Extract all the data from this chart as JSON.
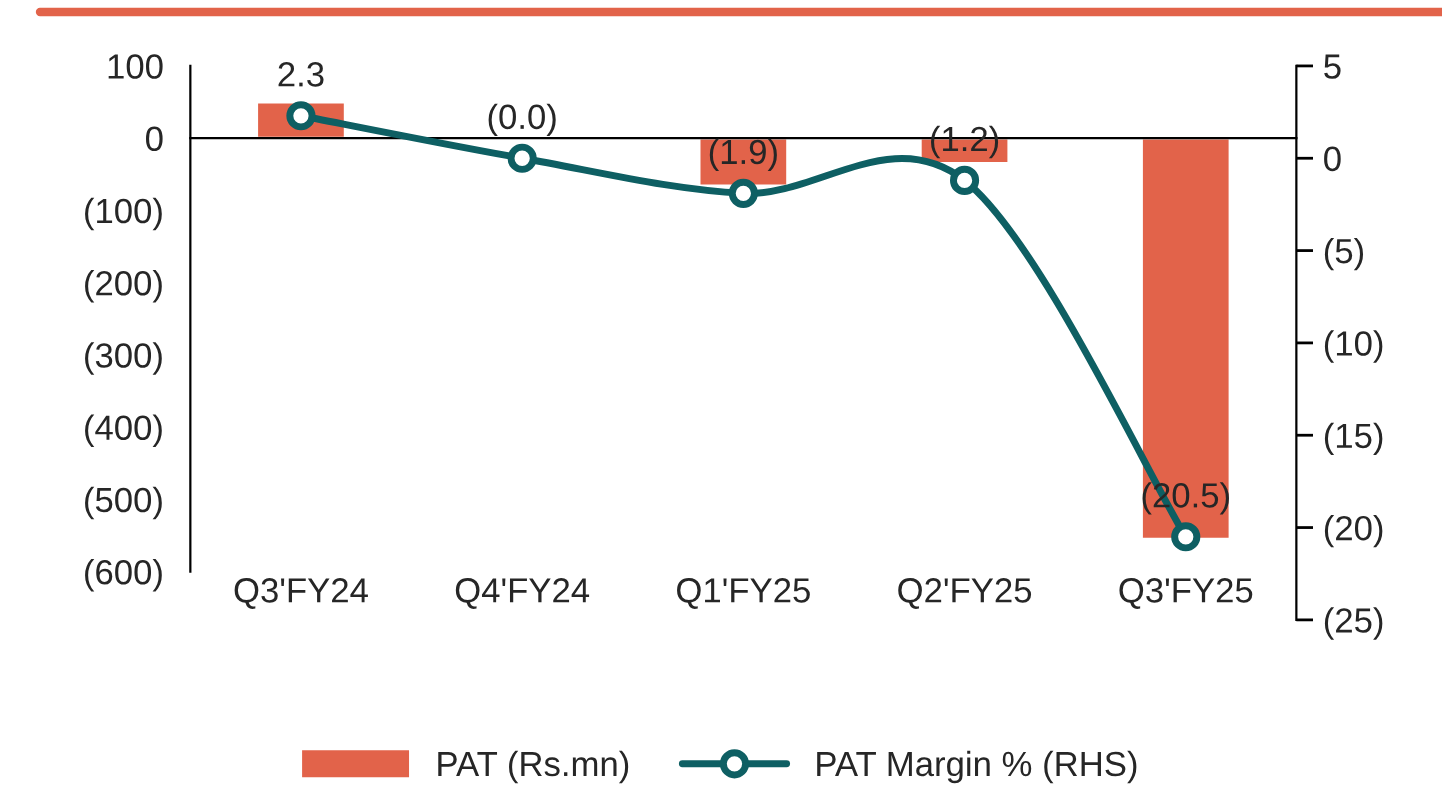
{
  "chart_data": {
    "type": "bar",
    "categories": [
      "Q3'FY24",
      "Q4'FY24",
      "Q1'FY25",
      "Q2'FY25",
      "Q3'FY25"
    ],
    "series": [
      {
        "name": "PAT (Rs.mn)",
        "color": "#e2634a",
        "values": [
          50,
          null,
          -66,
          -35,
          -555
        ]
      },
      {
        "name": "PAT Margin % (RHS)",
        "type": "line",
        "axis": "y2",
        "color": "#0e5f63",
        "values": [
          2.3,
          0.0,
          -1.9,
          -1.2,
          -20.5
        ],
        "value_labels": [
          "2.3",
          "(0.0)",
          "(1.9)",
          "(1.2)",
          "(20.5)"
        ]
      }
    ],
    "ylim": [
      -600,
      100
    ],
    "yticks": [
      {
        "value": 100,
        "label": "100"
      },
      {
        "value": 0,
        "label": "0"
      },
      {
        "value": -100,
        "label": "(100)"
      },
      {
        "value": -200,
        "label": "(200)"
      },
      {
        "value": -300,
        "label": "(300)"
      },
      {
        "value": -400,
        "label": "(400)"
      },
      {
        "value": -500,
        "label": "(500)"
      },
      {
        "value": -600,
        "label": "(600)"
      }
    ],
    "y2lim": [
      -25,
      5
    ],
    "y2ticks": [
      {
        "value": 5,
        "label": "5"
      },
      {
        "value": 0,
        "label": "0"
      },
      {
        "value": -5,
        "label": "(5)"
      },
      {
        "value": -10,
        "label": "(10)"
      },
      {
        "value": -15,
        "label": "(15)"
      },
      {
        "value": -20,
        "label": "(20)"
      },
      {
        "value": -25,
        "label": "(25)"
      }
    ],
    "marker": "circle",
    "legend": "bottom"
  }
}
